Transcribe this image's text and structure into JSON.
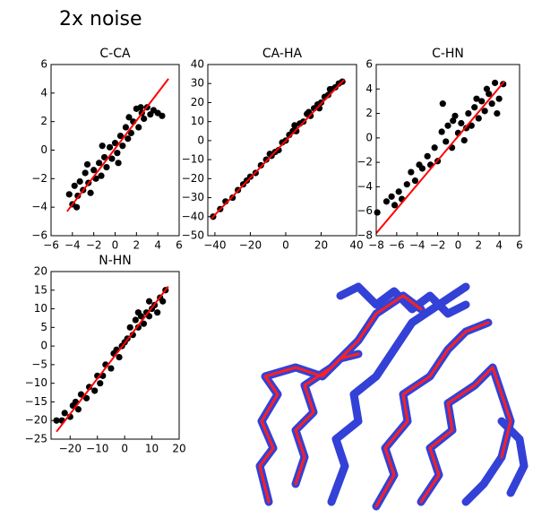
{
  "title": "2x noise",
  "chart_data": [
    {
      "type": "scatter",
      "title": "C-CA",
      "xlim": [
        -6,
        6
      ],
      "ylim": [
        -6,
        6
      ],
      "xticks": [
        {
          "value": -6,
          "label": "−6"
        },
        {
          "value": -4,
          "label": "−4"
        },
        {
          "value": -2,
          "label": "−2"
        },
        0,
        2,
        4,
        6
      ],
      "yticks": [
        {
          "value": -6,
          "label": "−6"
        },
        {
          "value": -4,
          "label": "−4"
        },
        {
          "value": -2,
          "label": "−2"
        },
        0,
        2,
        4,
        6
      ],
      "series": [
        {
          "color": "#000000",
          "x": [
            -4.3,
            -4,
            -3.8,
            -3.5,
            -3.3,
            -3,
            -2.8,
            -2.5,
            -2.3,
            -2,
            -1.8,
            -1.5,
            -1.3,
            -1,
            -0.8,
            -0.5,
            -0.3,
            0,
            0.2,
            0.5,
            0.7,
            1,
            1.2,
            1.5,
            1.7,
            2,
            2.2,
            2.5,
            2.7,
            3,
            3.3,
            3.6,
            4,
            4.4,
            -3.6,
            -2.6,
            -1.2,
            0.3,
            1.3,
            2.4
          ],
          "values": [
            -3.1,
            -3.8,
            -2.5,
            -3.2,
            -2.2,
            -2.8,
            -1.6,
            -2.3,
            -3,
            -1.4,
            -2,
            -0.9,
            -1.8,
            -0.5,
            -1.2,
            0.2,
            -0.6,
            0.5,
            -0.2,
            1,
            0.3,
            1.6,
            0.8,
            1.2,
            2,
            2.9,
            1.6,
            2.6,
            2.2,
            3,
            2.5,
            2.8,
            2.6,
            2.4,
            -4,
            -1,
            0.3,
            -0.9,
            2.3,
            3
          ]
        },
        {
          "type": "line",
          "color": "#ff0000",
          "x": [
            -4.5,
            5
          ],
          "values": [
            -4.3,
            5
          ]
        }
      ]
    },
    {
      "type": "scatter",
      "title": "CA-HA",
      "xlim": [
        -44,
        40
      ],
      "ylim": [
        -50,
        40
      ],
      "xticks": [
        {
          "value": -40,
          "label": "−40"
        },
        {
          "value": -20,
          "label": "−20"
        },
        0,
        20,
        40
      ],
      "yticks": [
        {
          "value": -50,
          "label": "−50"
        },
        {
          "value": -40,
          "label": "−40"
        },
        {
          "value": -30,
          "label": "−30"
        },
        {
          "value": -20,
          "label": "−20"
        },
        {
          "value": -10,
          "label": "−10"
        },
        0,
        10,
        20,
        30,
        40
      ],
      "series": [
        {
          "color": "#000000",
          "x": [
            -41,
            -37,
            -34,
            -30,
            -27,
            -24,
            -20,
            -17,
            -14,
            -11,
            -8,
            -6,
            -4,
            -2,
            0,
            2,
            4,
            6,
            8,
            10,
            12,
            14,
            16,
            18,
            20,
            22,
            24,
            26,
            28,
            30,
            32,
            -22,
            -9,
            5,
            13,
            19,
            25
          ],
          "values": [
            -40,
            -36,
            -32,
            -30,
            -26,
            -23,
            -19,
            -17,
            -13,
            -10,
            -8,
            -6,
            -5,
            -1,
            0,
            3,
            5,
            5,
            9,
            10,
            14,
            13,
            17,
            19,
            20,
            23,
            24,
            27,
            28,
            30,
            31,
            -21,
            -7,
            8,
            15,
            17,
            27
          ]
        },
        {
          "type": "line",
          "color": "#ff0000",
          "x": [
            -42,
            33
          ],
          "values": [
            -41,
            32
          ]
        }
      ]
    },
    {
      "type": "scatter",
      "title": "C-HN",
      "xlim": [
        -8,
        6
      ],
      "ylim": [
        -8,
        6
      ],
      "xticks": [
        {
          "value": -8,
          "label": "−8"
        },
        {
          "value": -6,
          "label": "−6"
        },
        {
          "value": -4,
          "label": "−4"
        },
        {
          "value": -2,
          "label": "−2"
        },
        0,
        2,
        4,
        6
      ],
      "yticks": [
        {
          "value": -8,
          "label": "−8"
        },
        {
          "value": -6,
          "label": "−6"
        },
        {
          "value": -4,
          "label": "−4"
        },
        {
          "value": -2,
          "label": "−2"
        },
        0,
        2,
        4,
        6
      ],
      "series": [
        {
          "color": "#000000",
          "x": [
            -7.9,
            -7,
            -6.5,
            -6.2,
            -5.8,
            -5.5,
            -5,
            -4.6,
            -4.2,
            -3.8,
            -3.5,
            -3,
            -2.7,
            -2.3,
            -2,
            -1.6,
            -1.2,
            -1,
            -0.6,
            -0.3,
            0,
            0.3,
            0.6,
            1,
            1.3,
            1.6,
            2,
            2.3,
            2.6,
            3,
            3.3,
            3.6,
            4,
            4.4,
            -1.5,
            -0.5,
            0.8,
            1.8,
            2.8,
            3.8
          ],
          "values": [
            -6.1,
            -5.2,
            -4.8,
            -5.5,
            -4.4,
            -5,
            -3.8,
            -2.8,
            -3.5,
            -2.2,
            -2.5,
            -1.5,
            -2.2,
            -0.8,
            -1.9,
            0.5,
            -0.3,
            1,
            -0.8,
            1.8,
            0.4,
            1.2,
            -0.2,
            2,
            1,
            2.5,
            1.6,
            3,
            2.2,
            3.6,
            2.8,
            4.5,
            3.2,
            4.4,
            2.8,
            1.4,
            0.8,
            3.2,
            4,
            2
          ]
        },
        {
          "type": "line",
          "color": "#ff0000",
          "x": [
            -8,
            4.5
          ],
          "values": [
            -7.8,
            4.6
          ]
        }
      ]
    },
    {
      "type": "scatter",
      "title": "N-HN",
      "xlim": [
        -27,
        20
      ],
      "ylim": [
        -25,
        20
      ],
      "xticks": [
        {
          "value": -20,
          "label": "−20"
        },
        {
          "value": -10,
          "label": "−10"
        },
        0,
        10,
        20
      ],
      "yticks": [
        {
          "value": -25,
          "label": "−25"
        },
        {
          "value": -20,
          "label": "−20"
        },
        {
          "value": -15,
          "label": "−15"
        },
        {
          "value": -10,
          "label": "−10"
        },
        {
          "value": -5,
          "label": "−5"
        },
        0,
        5,
        10,
        15,
        20
      ],
      "series": [
        {
          "color": "#000000",
          "x": [
            -25,
            -23,
            -22,
            -20,
            -19,
            -17,
            -16,
            -14,
            -13,
            -11,
            -10,
            -8,
            -7,
            -5,
            -4,
            -2,
            -1,
            0,
            1,
            2,
            3,
            4,
            5,
            6,
            7,
            8,
            9,
            10,
            11,
            12,
            13,
            14,
            15,
            -18,
            -9,
            -3,
            5,
            9
          ],
          "values": [
            -20,
            -20,
            -18,
            -19,
            -16,
            -17,
            -13,
            -14,
            -11,
            -12,
            -8,
            -8,
            -5,
            -6,
            -2,
            -3,
            0,
            1,
            2,
            5,
            3,
            7,
            5,
            8,
            6,
            9,
            8,
            10,
            11,
            9,
            13,
            12,
            15,
            -15,
            -10,
            -1,
            9,
            12
          ]
        },
        {
          "type": "line",
          "color": "#ff0000",
          "x": [
            -25,
            16
          ],
          "values": [
            -23,
            16
          ]
        }
      ]
    }
  ]
}
